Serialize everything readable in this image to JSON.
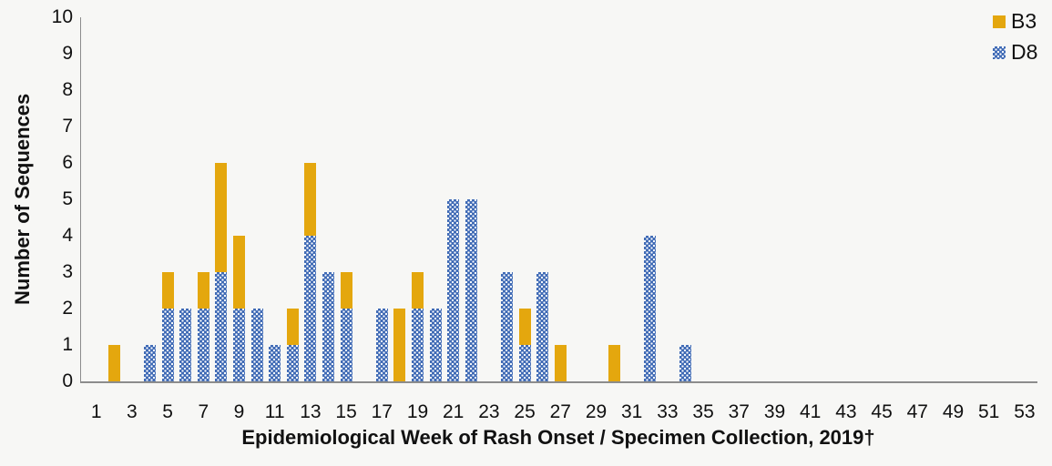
{
  "colors": {
    "b3": "#E4A70E",
    "d8": "#3F6AB5",
    "axis": "#8C8C8C",
    "text": "#111111",
    "background": "#F7F7F5"
  },
  "fills": {
    "b3": "solid",
    "d8": "dotted"
  },
  "legend": {
    "position": "top-right",
    "items": [
      {
        "label": "B3",
        "key": "b3"
      },
      {
        "label": "D8",
        "key": "d8"
      }
    ]
  },
  "chart_data": {
    "type": "bar",
    "stacked": true,
    "title": "",
    "xlabel": "Epidemiological Week of Rash Onset / Specimen Collection, 2019†",
    "ylabel": "Number of Sequences",
    "ylim": [
      0,
      10
    ],
    "y_ticks": [
      0,
      1,
      2,
      3,
      4,
      5,
      6,
      7,
      8,
      9,
      10
    ],
    "x_range": [
      1,
      53
    ],
    "x_ticks": [
      1,
      3,
      5,
      7,
      9,
      11,
      13,
      15,
      17,
      19,
      21,
      23,
      25,
      27,
      29,
      31,
      33,
      35,
      37,
      39,
      41,
      43,
      45,
      47,
      49,
      51,
      53
    ],
    "grid": false,
    "legend_position": "top-right",
    "stack_order": [
      "D8",
      "B3"
    ],
    "categories": [
      2,
      4,
      5,
      6,
      7,
      8,
      9,
      10,
      11,
      12,
      13,
      14,
      15,
      17,
      18,
      19,
      20,
      21,
      22,
      24,
      25,
      26,
      27,
      30,
      32,
      34
    ],
    "series": [
      {
        "name": "B3",
        "color_key": "b3",
        "values": [
          1,
          0,
          1,
          0,
          1,
          3,
          2,
          0,
          0,
          1,
          2,
          0,
          1,
          0,
          2,
          1,
          0,
          0,
          0,
          0,
          1,
          0,
          1,
          1,
          0,
          0
        ]
      },
      {
        "name": "D8",
        "color_key": "d8",
        "values": [
          0,
          1,
          2,
          2,
          2,
          3,
          2,
          2,
          1,
          1,
          4,
          3,
          2,
          2,
          0,
          2,
          2,
          5,
          5,
          3,
          1,
          3,
          0,
          0,
          4,
          1
        ]
      }
    ]
  }
}
